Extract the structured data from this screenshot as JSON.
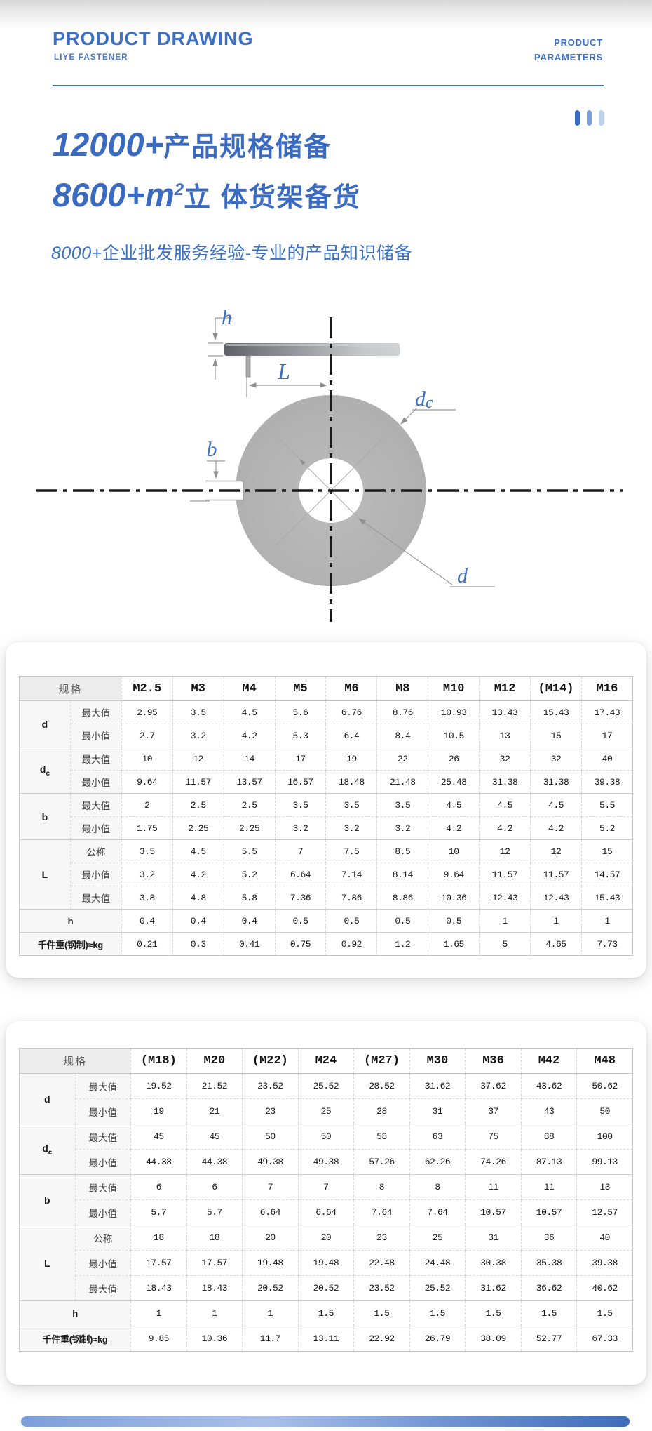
{
  "header": {
    "title": "PRODUCT DRAWING",
    "subtitle": "LIYE FASTENER",
    "right_line1": "PRODUCT",
    "right_line2": "PARAMETERS"
  },
  "hero": {
    "line1_num": "12000+",
    "line1_text": "产品规格储备",
    "line2_num": "8600+m",
    "line2_sup": "2",
    "line2_text": "立 体货架备货",
    "line3_num": "8000+",
    "line3_text": "企业批发服务经验-专业的产品知识储备"
  },
  "accent": {
    "blue": "#3b70c4",
    "bar_colors": [
      "#3a6bc0",
      "#7c9fdc",
      "#bdd0f0"
    ]
  },
  "drawing": {
    "labels": {
      "h": "h",
      "L": "L",
      "b": "b",
      "dc_main": "d",
      "dc_sub": "c",
      "d": "d"
    }
  },
  "tables": [
    {
      "header_label": "规格",
      "columns": [
        "M2.5",
        "M3",
        "M4",
        "M5",
        "M6",
        "M8",
        "M10",
        "M12",
        "(M14)",
        "M16"
      ],
      "rows": [
        {
          "group": "d",
          "sub": "最大值",
          "values": [
            "2.95",
            "3.5",
            "4.5",
            "5.6",
            "6.76",
            "8.76",
            "10.93",
            "13.43",
            "15.43",
            "17.43"
          ]
        },
        {
          "group": "d",
          "sub": "最小值",
          "values": [
            "2.7",
            "3.2",
            "4.2",
            "5.3",
            "6.4",
            "8.4",
            "10.5",
            "13",
            "15",
            "17"
          ]
        },
        {
          "group": "dc",
          "sub": "最大值",
          "values": [
            "10",
            "12",
            "14",
            "17",
            "19",
            "22",
            "26",
            "32",
            "32",
            "40"
          ]
        },
        {
          "group": "dc",
          "sub": "最小值",
          "values": [
            "9.64",
            "11.57",
            "13.57",
            "16.57",
            "18.48",
            "21.48",
            "25.48",
            "31.38",
            "31.38",
            "39.38"
          ]
        },
        {
          "group": "b",
          "sub": "最大值",
          "values": [
            "2",
            "2.5",
            "2.5",
            "3.5",
            "3.5",
            "3.5",
            "4.5",
            "4.5",
            "4.5",
            "5.5"
          ]
        },
        {
          "group": "b",
          "sub": "最小值",
          "values": [
            "1.75",
            "2.25",
            "2.25",
            "3.2",
            "3.2",
            "3.2",
            "4.2",
            "4.2",
            "4.2",
            "5.2"
          ]
        },
        {
          "group": "L",
          "sub": "公称",
          "values": [
            "3.5",
            "4.5",
            "5.5",
            "7",
            "7.5",
            "8.5",
            "10",
            "12",
            "12",
            "15"
          ]
        },
        {
          "group": "L",
          "sub": "最小值",
          "values": [
            "3.2",
            "4.2",
            "5.2",
            "6.64",
            "7.14",
            "8.14",
            "9.64",
            "11.57",
            "11.57",
            "14.57"
          ]
        },
        {
          "group": "L",
          "sub": "最大值",
          "values": [
            "3.8",
            "4.8",
            "5.8",
            "7.36",
            "7.86",
            "8.86",
            "10.36",
            "12.43",
            "12.43",
            "15.43"
          ]
        },
        {
          "group": "h",
          "sub": null,
          "values": [
            "0.4",
            "0.4",
            "0.4",
            "0.5",
            "0.5",
            "0.5",
            "0.5",
            "1",
            "1",
            "1"
          ]
        },
        {
          "group": "千件重(钢制)≈kg",
          "sub": null,
          "values": [
            "0.21",
            "0.3",
            "0.41",
            "0.75",
            "0.92",
            "1.2",
            "1.65",
            "5",
            "4.65",
            "7.73"
          ]
        }
      ]
    },
    {
      "header_label": "规格",
      "columns": [
        "(M18)",
        "M20",
        "(M22)",
        "M24",
        "(M27)",
        "M30",
        "M36",
        "M42",
        "M48"
      ],
      "rows": [
        {
          "group": "d",
          "sub": "最大值",
          "values": [
            "19.52",
            "21.52",
            "23.52",
            "25.52",
            "28.52",
            "31.62",
            "37.62",
            "43.62",
            "50.62"
          ]
        },
        {
          "group": "d",
          "sub": "最小值",
          "values": [
            "19",
            "21",
            "23",
            "25",
            "28",
            "31",
            "37",
            "43",
            "50"
          ]
        },
        {
          "group": "dc",
          "sub": "最大值",
          "values": [
            "45",
            "45",
            "50",
            "50",
            "58",
            "63",
            "75",
            "88",
            "100"
          ]
        },
        {
          "group": "dc",
          "sub": "最小值",
          "values": [
            "44.38",
            "44.38",
            "49.38",
            "49.38",
            "57.26",
            "62.26",
            "74.26",
            "87.13",
            "99.13"
          ]
        },
        {
          "group": "b",
          "sub": "最大值",
          "values": [
            "6",
            "6",
            "7",
            "7",
            "8",
            "8",
            "11",
            "11",
            "13"
          ]
        },
        {
          "group": "b",
          "sub": "最小值",
          "values": [
            "5.7",
            "5.7",
            "6.64",
            "6.64",
            "7.64",
            "7.64",
            "10.57",
            "10.57",
            "12.57"
          ]
        },
        {
          "group": "L",
          "sub": "公称",
          "values": [
            "18",
            "18",
            "20",
            "20",
            "23",
            "25",
            "31",
            "36",
            "40"
          ]
        },
        {
          "group": "L",
          "sub": "最小值",
          "values": [
            "17.57",
            "17.57",
            "19.48",
            "19.48",
            "22.48",
            "24.48",
            "30.38",
            "35.38",
            "39.38"
          ]
        },
        {
          "group": "L",
          "sub": "最大值",
          "values": [
            "18.43",
            "18.43",
            "20.52",
            "20.52",
            "23.52",
            "25.52",
            "31.62",
            "36.62",
            "40.62"
          ]
        },
        {
          "group": "h",
          "sub": null,
          "values": [
            "1",
            "1",
            "1",
            "1.5",
            "1.5",
            "1.5",
            "1.5",
            "1.5",
            "1.5"
          ]
        },
        {
          "group": "千件重(钢制)≈kg",
          "sub": null,
          "values": [
            "9.85",
            "10.36",
            "11.7",
            "13.11",
            "22.92",
            "26.79",
            "38.09",
            "52.77",
            "67.33"
          ]
        }
      ]
    }
  ]
}
